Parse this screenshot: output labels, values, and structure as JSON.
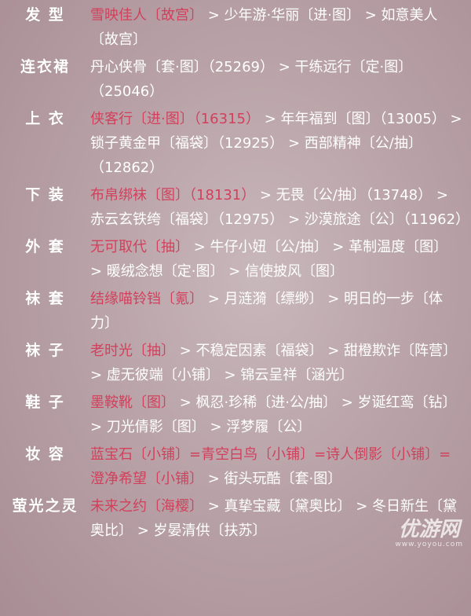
{
  "rows": [
    {
      "label": "发 型",
      "highlight": "雪映佳人〔故宫〕",
      "rest": " > 少年游·华丽〔进·图〕 > 如意美人〔故宫〕"
    },
    {
      "label": "连衣裙",
      "highlight": "",
      "rest": "丹心侠骨〔套·图〕（25269） > 干练远行〔定·图〕（25046）"
    },
    {
      "label": "上 衣",
      "highlight": "侠客行〔进·图〕（16315）",
      "rest": " > 年年福到〔图〕（13005） > 锁子黄金甲〔福袋〕（12925） > 西部精神〔公/抽〕（12862）"
    },
    {
      "label": "下 装",
      "highlight": "布帛绑袜〔图〕（18131）",
      "rest": " > 无畏〔公/抽〕（13748） > 赤云玄铁绔〔福袋〕（12975） > 沙漠旅途〔公〕（11962）"
    },
    {
      "label": "外 套",
      "highlight": "无可取代〔抽〕",
      "rest": " > 牛仔小妞〔公/抽〕 > 革制温度〔图〕 > 暖绒念想〔定·图〕 > 信使披风〔图〕"
    },
    {
      "label": "袜 套",
      "highlight": "结缘喵铃铛〔氪〕",
      "rest": " > 月涟漪〔缥缈〕 > 明日的一步〔体力〕"
    },
    {
      "label": "袜 子",
      "highlight": "老时光〔抽〕",
      "rest": " > 不稳定因素〔福袋〕 > 甜橙欺诈〔阵营〕 > 虚无彼端〔小铺〕 > 锦云呈祥〔涵光〕"
    },
    {
      "label": "鞋 子",
      "highlight": "墨鞍靴〔图〕",
      "rest": " > 枫忍·珍稀〔进·公/抽〕 > 岁诞红鸾〔钻〕 > 刀光倩影〔图〕 > 浮梦履〔公〕"
    },
    {
      "label": "妆 容",
      "highlight": "蓝宝石〔小铺〕=青空白鸟〔小铺〕=诗人倒影〔小铺〕=澄净希望〔小铺〕",
      "rest": " > 街头玩酷〔套·图〕"
    },
    {
      "label": "萤光之灵",
      "highlight": "未来之约〔海樱〕",
      "rest": " > 真挚宝藏〔黛奥比〕 > 冬日新生〔黛奥比〕 > 岁晏清供〔扶苏〕"
    }
  ],
  "watermark": {
    "logo": "优游网",
    "url": "www.yoyou.com"
  },
  "colors": {
    "highlight": "#d2405c",
    "text": "#ffffff",
    "background": "#b9a3a8"
  }
}
